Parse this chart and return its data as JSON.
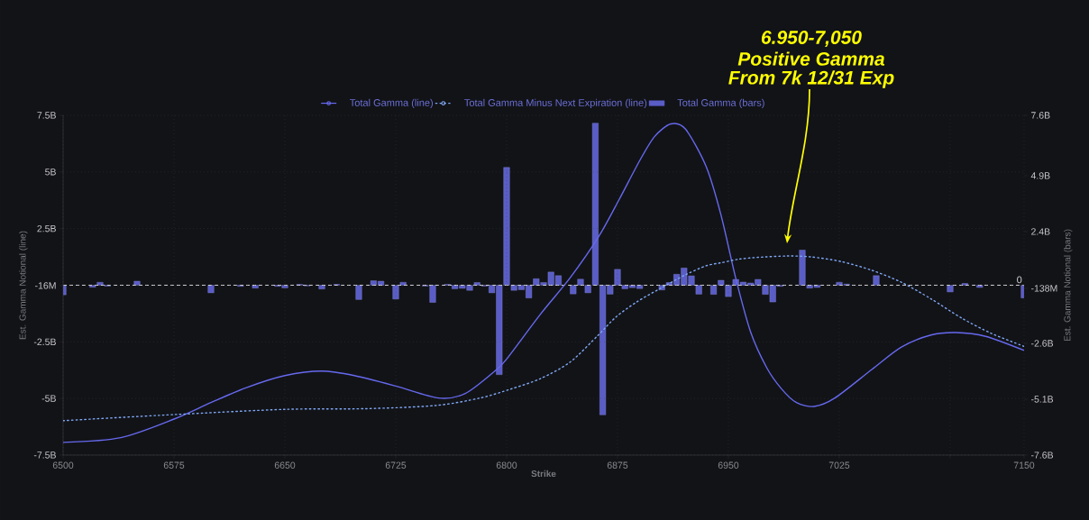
{
  "chart_data": {
    "type": "line",
    "xlabel": "Strike",
    "ylabel": "Est. Gamma Notional (line)",
    "y2label": "Est. Gamma Notional (bars)",
    "xlim": [
      6500,
      7150
    ],
    "xticks": [
      6500,
      6575,
      6650,
      6725,
      6800,
      6875,
      6950,
      7025,
      {
        "value": 7100,
        "label": null
      },
      7150
    ],
    "ylim": [
      -7500000000.0,
      7500000000.0
    ],
    "yticks": [
      {
        "value": -7500000000.0,
        "label": "-7.5B"
      },
      {
        "value": -5000000000.0,
        "label": "-5B"
      },
      {
        "value": -2500000000.0,
        "label": "-2.5B"
      },
      {
        "value": -16000000.0,
        "label": "-16M"
      },
      {
        "value": 2500000000.0,
        "label": "2.5B"
      },
      {
        "value": 5000000000.0,
        "label": "5B"
      },
      {
        "value": 7500000000.0,
        "label": "7.5B"
      }
    ],
    "y2lim": [
      -7600000000.0,
      7600000000.0
    ],
    "y2ticks": [
      {
        "value": -7600000000.0,
        "label": "-7.6B"
      },
      {
        "value": -5100000000.0,
        "label": "-5.1B"
      },
      {
        "value": -2600000000.0,
        "label": "-2.6B"
      },
      {
        "value": -138000000.0,
        "label": "-138M"
      },
      {
        "value": 2400000000.0,
        "label": "2.4B"
      },
      {
        "value": 4900000000.0,
        "label": "4.9B"
      },
      {
        "value": 7600000000.0,
        "label": "7.6B"
      }
    ],
    "grid": true,
    "legend": "top",
    "series": [
      {
        "name": "Total Gamma (line)",
        "color": "#6669ee",
        "line_style": "solid",
        "x": [
          6500,
          6539,
          6575,
          6600,
          6624,
          6650,
          6675,
          6697,
          6725,
          6754,
          6772,
          6792,
          6800,
          6823,
          6843,
          6862,
          6876,
          6890,
          6900,
          6911,
          6921,
          6935,
          6945,
          6955,
          6965,
          6976,
          6986,
          6996,
          7008,
          7022,
          7047,
          7067,
          7087,
          7104,
          7124,
          7150
        ],
        "values": [
          -6940000000.0,
          -6730000000.0,
          -5910000000.0,
          -5180000000.0,
          -4520000000.0,
          -3990000000.0,
          -3790000000.0,
          -3990000000.0,
          -4450000000.0,
          -4980000000.0,
          -4780000000.0,
          -3790000000.0,
          -3260000000.0,
          -1270000000.0,
          330000000.0,
          2120000000.0,
          3770000000.0,
          5500000000.0,
          6560000000.0,
          7120000000.0,
          6890000000.0,
          5230000000.0,
          3100000000.0,
          300000000.0,
          -2060000000.0,
          -3650000000.0,
          -4580000000.0,
          -5180000000.0,
          -5350000000.0,
          -4980000000.0,
          -3720000000.0,
          -2730000000.0,
          -2200000000.0,
          -2090000000.0,
          -2260000000.0,
          -2880000000.0
        ]
      },
      {
        "name": "Total Gamma Minus Next Expiration (line)",
        "color": "#7fa8f5",
        "line_style": "dotted",
        "x": [
          6500,
          6575,
          6650,
          6705,
          6752,
          6782,
          6803,
          6823,
          6843,
          6862,
          6874,
          6888,
          6904,
          6921,
          6935,
          6945,
          6957,
          6970,
          6990,
          7006,
          7026,
          7047,
          7067,
          7087,
          7108,
          7128,
          7150
        ],
        "values": [
          -5980000000.0,
          -5710000000.0,
          -5480000000.0,
          -5450000000.0,
          -5310000000.0,
          -4980000000.0,
          -4580000000.0,
          -4120000000.0,
          -3390000000.0,
          -2200000000.0,
          -1400000000.0,
          -740000000.0,
          -140000000.0,
          460000000.0,
          860000000.0,
          990000000.0,
          1150000000.0,
          1230000000.0,
          1290000000.0,
          1250000000.0,
          1050000000.0,
          660000000.0,
          130000000.0,
          -600000000.0,
          -1460000000.0,
          -2130000000.0,
          -2700000000.0
        ]
      },
      {
        "name": "Total Gamma (bars)",
        "type": "bar",
        "axis": "y2",
        "color": "#5a5dc6",
        "x": [
          6500,
          6520,
          6525,
          6530,
          6550,
          6600,
          6620,
          6630,
          6645,
          6650,
          6660,
          6665,
          6675,
          6685,
          6700,
          6710,
          6715,
          6725,
          6730,
          6745,
          6750,
          6760,
          6765,
          6770,
          6775,
          6780,
          6785,
          6790,
          6795,
          6800,
          6805,
          6810,
          6815,
          6820,
          6825,
          6830,
          6835,
          6845,
          6850,
          6855,
          6860,
          6865,
          6870,
          6875,
          6880,
          6885,
          6890,
          6905,
          6910,
          6915,
          6920,
          6925,
          6930,
          6940,
          6945,
          6950,
          6955,
          6960,
          6965,
          6970,
          6975,
          6980,
          6985,
          7000,
          7005,
          7010,
          7025,
          7030,
          7050,
          7100,
          7110,
          7120,
          7150
        ],
        "values": [
          -430000000.0,
          -90000000.0,
          130000000.0,
          -40000000.0,
          180000000.0,
          -340000000.0,
          -50000000.0,
          -130000000.0,
          -50000000.0,
          -120000000.0,
          40000000.0,
          -30000000.0,
          -170000000.0,
          40000000.0,
          -640000000.0,
          200000000.0,
          180000000.0,
          -620000000.0,
          130000000.0,
          -40000000.0,
          -770000000.0,
          40000000.0,
          -160000000.0,
          -140000000.0,
          -230000000.0,
          120000000.0,
          -40000000.0,
          -340000000.0,
          -4000000000.0,
          5270000000.0,
          -230000000.0,
          -200000000.0,
          -570000000.0,
          290000000.0,
          120000000.0,
          590000000.0,
          430000000.0,
          -390000000.0,
          270000000.0,
          -340000000.0,
          7250000000.0,
          -5800000000.0,
          -400000000.0,
          710000000.0,
          -160000000.0,
          -110000000.0,
          -150000000.0,
          -210000000.0,
          120000000.0,
          490000000.0,
          770000000.0,
          420000000.0,
          -400000000.0,
          -410000000.0,
          220000000.0,
          -510000000.0,
          260000000.0,
          140000000.0,
          100000000.0,
          260000000.0,
          -410000000.0,
          -750000000.0,
          -50000000.0,
          1570000000.0,
          -130000000.0,
          -100000000.0,
          130000000.0,
          50000000.0,
          430000000.0,
          -300000000.0,
          80000000.0,
          -100000000.0,
          -570000000.0
        ]
      }
    ],
    "ref_lines": [
      {
        "axis": "y2",
        "value": 0,
        "label": "0",
        "color": "#d4d4d8",
        "line_style": "dashed"
      }
    ],
    "annotations": [
      "6.950-7,050",
      "Positive Gamma",
      "From 7k 12/31 Exp"
    ]
  }
}
